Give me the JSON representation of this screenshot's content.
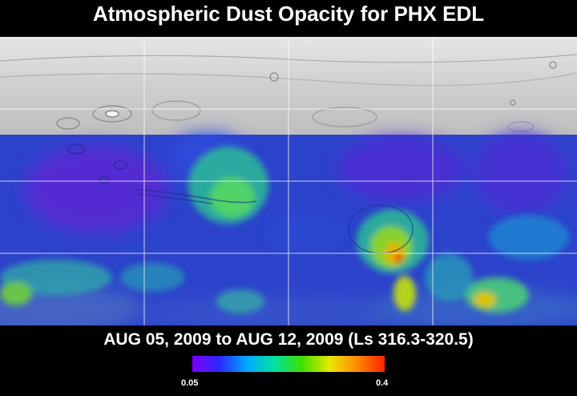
{
  "title": "Atmospheric Dust Opacity for PHX EDL",
  "date_range": "AUG 05, 2009 to AUG 12, 2009 (Ls 316.3-320.5)",
  "colorbar": {
    "min_label": "0.05",
    "max_label": "0.4",
    "colors": [
      "#7a00ff",
      "#2a2aff",
      "#00aaff",
      "#00e0a0",
      "#40e000",
      "#e8e800",
      "#ff8800",
      "#ff2200"
    ]
  },
  "map": {
    "land_shade": "#c4c4c4",
    "grid_color": "#ffffff",
    "hotspots": [
      {
        "name": "tharsis-green",
        "level": 0.22
      },
      {
        "name": "hellas-region",
        "level": 0.35
      },
      {
        "name": "south-east-yellow",
        "level": 0.28
      }
    ]
  }
}
